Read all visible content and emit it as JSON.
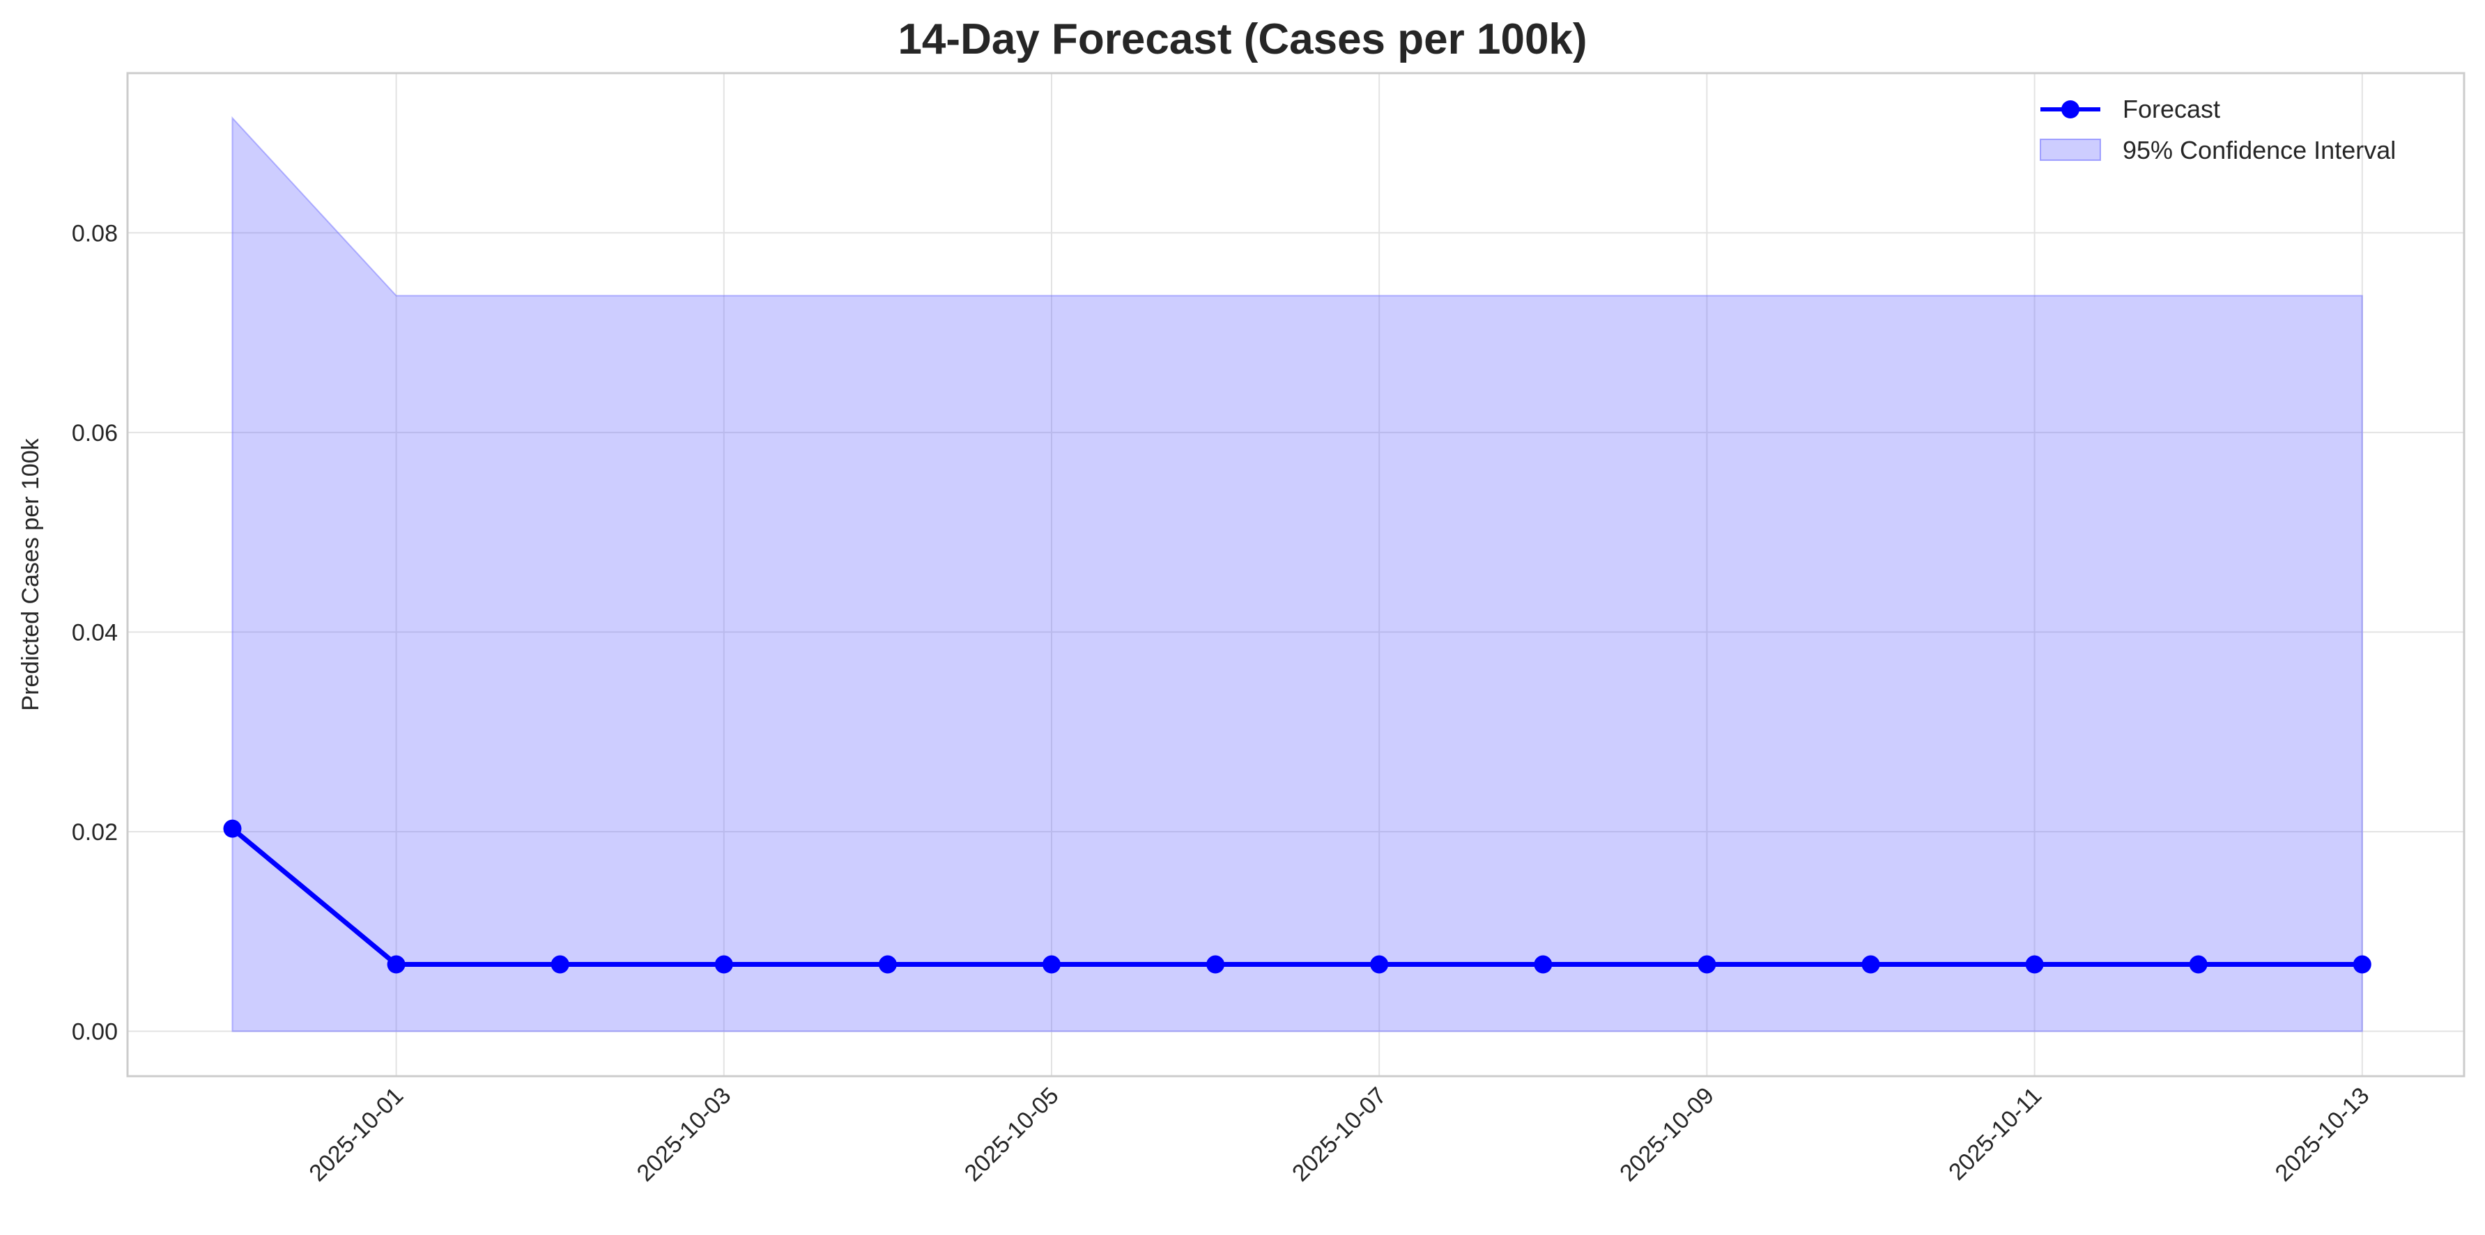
{
  "chart_data": {
    "type": "line",
    "title": "14-Day Forecast (Cases per 100k)",
    "xlabel": "",
    "ylabel": "Predicted Cases per 100k",
    "x": [
      "2025-09-30",
      "2025-10-01",
      "2025-10-02",
      "2025-10-03",
      "2025-10-04",
      "2025-10-05",
      "2025-10-06",
      "2025-10-07",
      "2025-10-08",
      "2025-10-09",
      "2025-10-10",
      "2025-10-11",
      "2025-10-12",
      "2025-10-13"
    ],
    "x_tick_labels": [
      "2025-10-01",
      "2025-10-03",
      "2025-10-05",
      "2025-10-07",
      "2025-10-09",
      "2025-10-11",
      "2025-10-13"
    ],
    "ylim": [
      -0.0045,
      0.096
    ],
    "y_ticks": [
      "0.00",
      "0.02",
      "0.04",
      "0.06",
      "0.08"
    ],
    "grid": true,
    "legend_position": "top-right",
    "series": [
      {
        "name": "Forecast",
        "kind": "line-with-markers",
        "color": "#0000ff",
        "values": [
          0.0203,
          0.0067,
          0.0067,
          0.0067,
          0.0067,
          0.0067,
          0.0067,
          0.0067,
          0.0067,
          0.0067,
          0.0067,
          0.0067,
          0.0067,
          0.0067
        ]
      },
      {
        "name": "95% Confidence Interval",
        "kind": "band",
        "color": "#6666ff",
        "lower": [
          0,
          0,
          0,
          0,
          0,
          0,
          0,
          0,
          0,
          0,
          0,
          0,
          0,
          0
        ],
        "upper": [
          0.0915,
          0.0737,
          0.0737,
          0.0737,
          0.0737,
          0.0737,
          0.0737,
          0.0737,
          0.0737,
          0.0737,
          0.0737,
          0.0737,
          0.0737,
          0.0737
        ]
      }
    ]
  }
}
